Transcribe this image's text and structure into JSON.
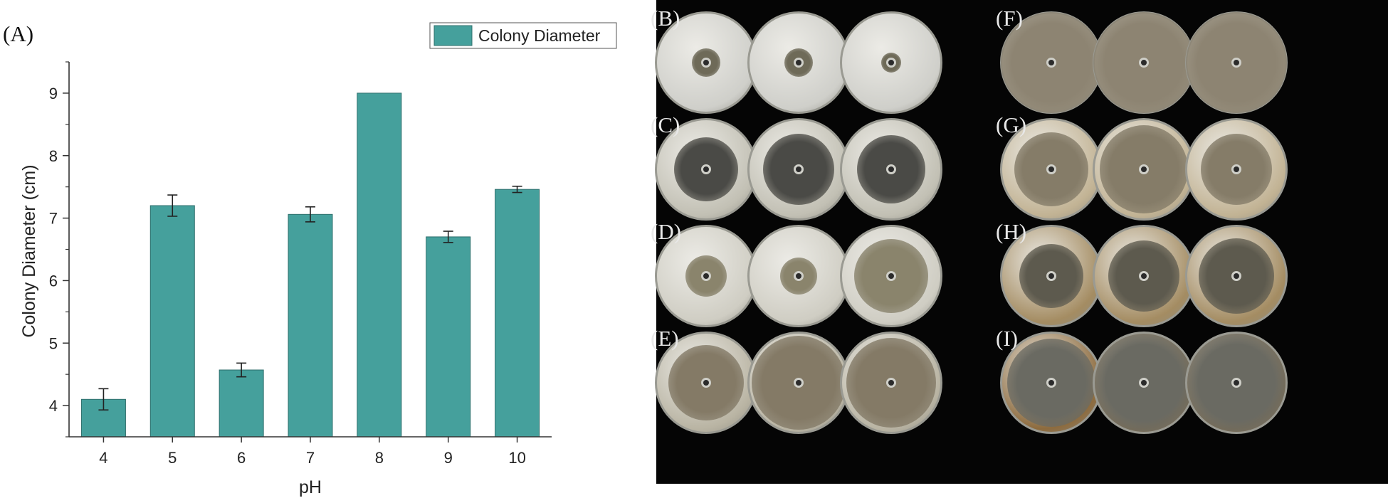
{
  "panel_a_label": "(A)",
  "chart_data": {
    "type": "bar",
    "title": "",
    "xlabel": "pH",
    "ylabel": "Colony Diameter (cm)",
    "categories": [
      "4",
      "5",
      "6",
      "7",
      "8",
      "9",
      "10"
    ],
    "series": [
      {
        "name": "Colony Diameter",
        "values": [
          4.1,
          7.2,
          4.57,
          7.06,
          9.0,
          6.7,
          7.46
        ],
        "errors": [
          0.17,
          0.17,
          0.11,
          0.12,
          0.0,
          0.09,
          0.05
        ]
      }
    ],
    "ylim": [
      3.5,
      9.5
    ],
    "yticks": [
      "4",
      "5",
      "6",
      "7",
      "8",
      "9"
    ],
    "grid": false,
    "legend": "top-right",
    "colors": {
      "bar": "#45a09c",
      "bar_edge": "#2f6f6c",
      "axis": "#333333"
    }
  },
  "photo_panels": [
    {
      "label": "(B)",
      "colors": {
        "plate": "#cfcfca",
        "colony": "#6e6a58"
      },
      "colony_scale": [
        0.28,
        0.28,
        0.2
      ]
    },
    {
      "label": "(C)",
      "colors": {
        "plate": "#c2c0b4",
        "colony": "#4a4a46"
      },
      "colony_scale": [
        0.62,
        0.7,
        0.66
      ]
    },
    {
      "label": "(D)",
      "colors": {
        "plate": "#cfcdc3",
        "colony": "#8a846c"
      },
      "colony_scale": [
        0.4,
        0.36,
        0.72
      ]
    },
    {
      "label": "(E)",
      "colors": {
        "plate": "#b9b4a3",
        "colony": "#847a66"
      },
      "colony_scale": [
        0.74,
        0.92,
        0.88
      ]
    },
    {
      "label": "(F)",
      "colors": {
        "plate": "#b3aa96",
        "colony": "#8d8472"
      },
      "colony_scale": [
        0.98,
        0.98,
        0.98
      ]
    },
    {
      "label": "(G)",
      "colors": {
        "plate": "#c2b394",
        "colony": "#857c68"
      },
      "colony_scale": [
        0.72,
        0.86,
        0.7
      ]
    },
    {
      "label": "(H)",
      "colors": {
        "plate": "#a48c62",
        "colony": "#5d5a4e"
      },
      "colony_scale": [
        0.62,
        0.7,
        0.74
      ]
    },
    {
      "label": "(I)",
      "colors": {
        "plate": "#8d6b3e",
        "colony": "#6a6a62"
      },
      "colony_scale": [
        0.86,
        0.96,
        0.96
      ]
    }
  ]
}
